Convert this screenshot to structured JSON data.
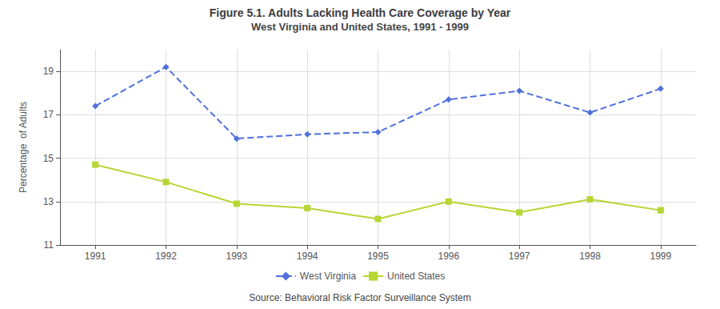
{
  "chart_data": {
    "type": "line",
    "title": "Figure 5.1. Adults Lacking Health Care Coverage by Year",
    "subtitle": "West Virginia and United States, 1991 - 1999",
    "ylabel": "Percentage  of Adults",
    "source": "Source: Behavioral Risk Factor Surveillance System",
    "x": [
      1991,
      1992,
      1993,
      1994,
      1995,
      1996,
      1997,
      1998,
      1999
    ],
    "xlim": [
      1990.5,
      1999.5
    ],
    "xticks": [
      1991,
      1992,
      1993,
      1994,
      1995,
      1996,
      1997,
      1998,
      1999
    ],
    "ylim": [
      11,
      20
    ],
    "yticks": [
      11,
      13,
      15,
      17,
      19
    ],
    "grid": true,
    "legend": "bottom",
    "series": [
      {
        "name": "West Virginia",
        "values": [
          17.4,
          19.2,
          15.9,
          16.1,
          16.2,
          17.7,
          18.1,
          17.1,
          18.2
        ],
        "marker": "diamond",
        "line_style": "dashed"
      },
      {
        "name": "United States",
        "values": [
          14.7,
          13.9,
          12.9,
          12.7,
          12.2,
          13.0,
          12.5,
          13.1,
          12.6
        ],
        "marker": "square",
        "line_style": "solid"
      }
    ]
  }
}
